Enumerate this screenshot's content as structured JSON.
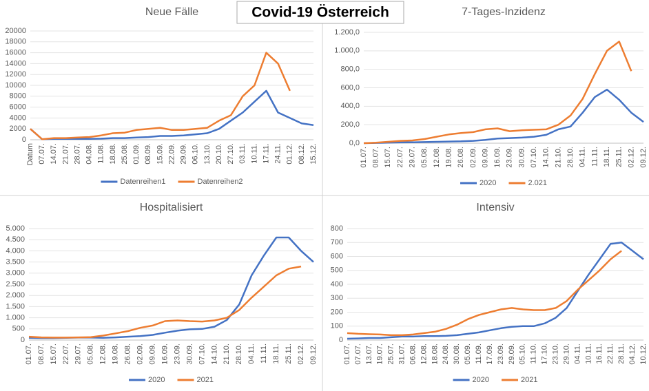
{
  "title": "Covid-19 Österreich",
  "chart_data": [
    {
      "type": "line",
      "title": "Neue Fälle",
      "categories": [
        "Datum",
        "07.07.",
        "14.07.",
        "21.07.",
        "28.07.",
        "04.08.",
        "11.08.",
        "18.08.",
        "25.08.",
        "01.09.",
        "08.09.",
        "15.09.",
        "22.09.",
        "29.09.",
        "06.10.",
        "13.10.",
        "20.10.",
        "27.10.",
        "03.11.",
        "10.11.",
        "17.11.",
        "24.11.",
        "01.12.",
        "08.12.",
        "15.12."
      ],
      "series": [
        {
          "name": "Datenreihen1",
          "color": "#4472c4",
          "values": [
            2000,
            100,
            150,
            150,
            150,
            150,
            200,
            300,
            300,
            400,
            500,
            700,
            700,
            800,
            1000,
            1200,
            2000,
            3500,
            5000,
            7000,
            9000,
            5000,
            4000,
            3000,
            2700
          ]
        },
        {
          "name": "Datenreihen2",
          "color": "#ed7d31",
          "values": [
            2000,
            100,
            300,
            300,
            400,
            500,
            800,
            1200,
            1300,
            1800,
            2000,
            2200,
            1800,
            1800,
            2000,
            2200,
            3500,
            4500,
            8000,
            10000,
            16000,
            14000,
            9000,
            null,
            null
          ]
        }
      ],
      "ylim": [
        0,
        20000
      ],
      "yticks": [
        0,
        2000,
        4000,
        6000,
        8000,
        10000,
        12000,
        14000,
        16000,
        18000,
        20000
      ],
      "grid": true,
      "legend": "bottom"
    },
    {
      "type": "line",
      "title": "7-Tages-Inzidenz",
      "categories": [
        "01.07.",
        "08.07.",
        "15.07.",
        "22.07.",
        "29.07.",
        "05.08.",
        "12.08.",
        "19.08.",
        "26.08.",
        "02.09.",
        "09.09.",
        "16.09.",
        "23.09.",
        "30.09.",
        "07.10.",
        "14.10.",
        "21.10.",
        "28.10.",
        "04.11.",
        "11.11.",
        "18.11.",
        "25.11.",
        "02.12.",
        "09.12."
      ],
      "series": [
        {
          "name": "2020",
          "color": "#4472c4",
          "values": [
            0,
            3,
            5,
            8,
            10,
            12,
            15,
            18,
            20,
            25,
            35,
            50,
            55,
            60,
            70,
            90,
            150,
            180,
            330,
            500,
            580,
            470,
            330,
            230
          ]
        },
        {
          "name": "2.021",
          "color": "#ed7d31",
          "values": [
            0,
            5,
            15,
            25,
            30,
            45,
            70,
            95,
            110,
            120,
            150,
            160,
            130,
            140,
            145,
            150,
            200,
            300,
            480,
            750,
            1000,
            1100,
            780,
            null
          ]
        }
      ],
      "ylim": [
        0,
        1200
      ],
      "yticks": [
        {
          "value": 0,
          "label": "0,0"
        },
        {
          "value": 200,
          "label": "200,0"
        },
        {
          "value": 400,
          "label": "400,0"
        },
        {
          "value": 600,
          "label": "600,0"
        },
        {
          "value": 800,
          "label": "800,0"
        },
        {
          "value": 1000,
          "label": "1.000,0"
        },
        {
          "value": 1200,
          "label": "1.200,0"
        }
      ],
      "grid": true,
      "legend": "bottom"
    },
    {
      "type": "line",
      "title": "Hospitalisiert",
      "categories": [
        "01.07.",
        "08.07.",
        "15.07.",
        "22.07.",
        "29.07.",
        "05.08.",
        "12.08.",
        "19.08.",
        "26.08.",
        "02.09.",
        "09.09.",
        "16.09.",
        "23.09.",
        "30.09.",
        "07.10.",
        "14.10.",
        "21.10.",
        "28.10.",
        "04.11.",
        "11.11.",
        "18.11.",
        "25.11.",
        "02.12.",
        "09.12."
      ],
      "series": [
        {
          "name": "2020",
          "color": "#4472c4",
          "values": [
            100,
            90,
            90,
            100,
            110,
            110,
            100,
            120,
            150,
            180,
            230,
            330,
            420,
            480,
            500,
            600,
            900,
            1600,
            2900,
            3800,
            4600,
            4600,
            4000,
            3500
          ]
        },
        {
          "name": "2021",
          "color": "#ed7d31",
          "values": [
            150,
            120,
            110,
            110,
            120,
            130,
            200,
            300,
            400,
            550,
            650,
            850,
            880,
            850,
            830,
            880,
            1000,
            1350,
            1900,
            2400,
            2900,
            3200,
            3300,
            null
          ]
        }
      ],
      "ylim": [
        0,
        5000
      ],
      "yticks": [
        0,
        500,
        {
          "value": 1000,
          "label": "1.000"
        },
        {
          "value": 1500,
          "label": "1.500"
        },
        {
          "value": 2000,
          "label": "2.000"
        },
        {
          "value": 2500,
          "label": "2.500"
        },
        {
          "value": 3000,
          "label": "3.000"
        },
        {
          "value": 3500,
          "label": "3.500"
        },
        {
          "value": 4000,
          "label": "4.000"
        },
        {
          "value": 4500,
          "label": "4.500"
        },
        {
          "value": 5000,
          "label": "5.000"
        }
      ],
      "grid": true,
      "legend": "bottom"
    },
    {
      "type": "line",
      "title": "Intensiv",
      "categories": [
        "01.07.",
        "07.07.",
        "13.07.",
        "19.07.",
        "25.07.",
        "31.07.",
        "06.08.",
        "12.08.",
        "18.08.",
        "24.08.",
        "30.08.",
        "05.09.",
        "11.09.",
        "17.09.",
        "23.09.",
        "29.09.",
        "05.10.",
        "11.10.",
        "17.10.",
        "23.10.",
        "29.10.",
        "04.11.",
        "10.11.",
        "16.11.",
        "22.11.",
        "28.11.",
        "04.12.",
        "10.12."
      ],
      "series": [
        {
          "name": "2020",
          "color": "#4472c4",
          "values": [
            10,
            12,
            15,
            15,
            20,
            25,
            25,
            28,
            28,
            30,
            35,
            45,
            55,
            70,
            85,
            95,
            100,
            100,
            120,
            160,
            230,
            350,
            470,
            580,
            690,
            700,
            640,
            580
          ]
        },
        {
          "name": "2021",
          "color": "#ed7d31",
          "values": [
            50,
            45,
            42,
            40,
            35,
            35,
            40,
            50,
            60,
            80,
            110,
            150,
            180,
            200,
            220,
            230,
            220,
            215,
            215,
            230,
            280,
            360,
            430,
            500,
            580,
            640,
            null,
            null
          ]
        }
      ],
      "ylim": [
        0,
        800
      ],
      "yticks": [
        0,
        100,
        200,
        300,
        400,
        500,
        600,
        700,
        800
      ],
      "grid": true,
      "legend": "bottom"
    }
  ]
}
